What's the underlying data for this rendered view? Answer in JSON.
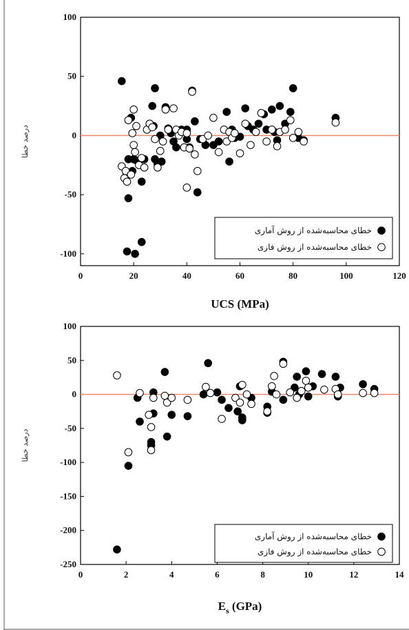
{
  "chart_data": [
    {
      "type": "scatter",
      "xlabel": "UCS (MPa)",
      "ylabel": "درصد خطا",
      "xlim": [
        0,
        120
      ],
      "ylim": [
        -110,
        100
      ],
      "xticks": [
        0,
        20,
        40,
        60,
        80,
        100,
        120
      ],
      "yticks": [
        100,
        50,
        0,
        -50,
        -100
      ],
      "reference_line": {
        "y": 0,
        "color": "#f08060"
      },
      "legend": {
        "position": "bottom-right"
      },
      "series": [
        {
          "name": "خطای محاسبه‌شده از روش آماری",
          "marker": "filled",
          "color": "#000000",
          "points": [
            [
              15.5,
              46
            ],
            [
              17,
              -35
            ],
            [
              17.5,
              -98
            ],
            [
              18,
              -53
            ],
            [
              18,
              -20
            ],
            [
              19,
              15
            ],
            [
              19.5,
              -30
            ],
            [
              20,
              -20
            ],
            [
              20.5,
              -100
            ],
            [
              21,
              -21
            ],
            [
              23,
              -90
            ],
            [
              23,
              -39
            ],
            [
              24,
              -20
            ],
            [
              26,
              10
            ],
            [
              27,
              25
            ],
            [
              27.5,
              8
            ],
            [
              28,
              40
            ],
            [
              28,
              -20
            ],
            [
              29,
              -24
            ],
            [
              30,
              0
            ],
            [
              30.5,
              -22
            ],
            [
              32,
              24
            ],
            [
              33,
              6
            ],
            [
              34,
              2
            ],
            [
              35,
              -5
            ],
            [
              36,
              -10
            ],
            [
              37,
              3
            ],
            [
              38,
              5
            ],
            [
              39,
              -10
            ],
            [
              40,
              5
            ],
            [
              40,
              -3
            ],
            [
              41,
              -10
            ],
            [
              42,
              38
            ],
            [
              43,
              12
            ],
            [
              44,
              -48
            ],
            [
              45,
              -3
            ],
            [
              47,
              -8
            ],
            [
              50,
              -8
            ],
            [
              52,
              -5
            ],
            [
              55,
              20
            ],
            [
              56,
              -22
            ],
            [
              57,
              5
            ],
            [
              58,
              -2
            ],
            [
              60,
              -1
            ],
            [
              62,
              23
            ],
            [
              63,
              8
            ],
            [
              65,
              5
            ],
            [
              67,
              10
            ],
            [
              69,
              18
            ],
            [
              70,
              5
            ],
            [
              72,
              22
            ],
            [
              73,
              3
            ],
            [
              74,
              -4
            ],
            [
              75,
              25
            ],
            [
              77,
              10
            ],
            [
              79,
              20
            ],
            [
              80,
              40
            ],
            [
              82,
              -2
            ],
            [
              84,
              -4
            ],
            [
              96,
              15
            ]
          ]
        },
        {
          "name": "خطای محاسبه‌شده از روش فازی",
          "marker": "open",
          "color": "#000000",
          "points": [
            [
              15.5,
              -26
            ],
            [
              16.5,
              -36
            ],
            [
              17,
              -30
            ],
            [
              17.5,
              -39
            ],
            [
              18,
              13
            ],
            [
              19,
              -33
            ],
            [
              19.5,
              2
            ],
            [
              20,
              -8
            ],
            [
              20,
              22
            ],
            [
              20.5,
              -14
            ],
            [
              21,
              8
            ],
            [
              22,
              -25
            ],
            [
              23,
              -19
            ],
            [
              24,
              -27
            ],
            [
              25,
              5
            ],
            [
              26,
              10
            ],
            [
              27,
              7
            ],
            [
              28,
              -3
            ],
            [
              29,
              -27
            ],
            [
              30,
              -13
            ],
            [
              31,
              -5
            ],
            [
              32,
              22
            ],
            [
              33,
              5
            ],
            [
              35,
              23
            ],
            [
              36,
              5
            ],
            [
              37,
              0
            ],
            [
              38,
              3
            ],
            [
              39,
              -10
            ],
            [
              40,
              -44
            ],
            [
              40,
              2
            ],
            [
              41,
              -11
            ],
            [
              42,
              37
            ],
            [
              43,
              -16
            ],
            [
              44,
              -30
            ],
            [
              46,
              -3
            ],
            [
              48,
              0
            ],
            [
              50,
              15
            ],
            [
              52,
              -14
            ],
            [
              54,
              5
            ],
            [
              55,
              -5
            ],
            [
              56,
              3
            ],
            [
              57,
              -2
            ],
            [
              58,
              2
            ],
            [
              60,
              -15
            ],
            [
              62,
              10
            ],
            [
              64,
              -8
            ],
            [
              66,
              3
            ],
            [
              68,
              19
            ],
            [
              70,
              -5
            ],
            [
              72,
              5
            ],
            [
              74,
              -9
            ],
            [
              75,
              3
            ],
            [
              77,
              5
            ],
            [
              79,
              13
            ],
            [
              80,
              -2
            ],
            [
              82,
              3
            ],
            [
              84,
              -5
            ],
            [
              96,
              11
            ]
          ]
        }
      ]
    },
    {
      "type": "scatter",
      "xlabel": "E",
      "xlabel_sub": "s",
      "xlabel_unit": " (GPa)",
      "ylabel": "درصد خطا",
      "xlim": [
        0,
        14
      ],
      "ylim": [
        -250,
        100
      ],
      "xticks": [
        0,
        2,
        4,
        6,
        8,
        10,
        12,
        14
      ],
      "yticks": [
        100,
        50,
        0,
        -50,
        -100,
        -150,
        -200,
        -250
      ],
      "reference_line": {
        "y": 0,
        "color": "#f08060"
      },
      "legend": {
        "position": "bottom-right"
      },
      "series": [
        {
          "name": "خطای محاسبه‌شده از روش آماری",
          "marker": "filled",
          "color": "#000000",
          "points": [
            [
              1.6,
              -228
            ],
            [
              2.1,
              -105
            ],
            [
              2.5,
              -5
            ],
            [
              2.6,
              -40
            ],
            [
              3.1,
              -75
            ],
            [
              3.1,
              -70
            ],
            [
              3.2,
              -28
            ],
            [
              3.2,
              3
            ],
            [
              3.7,
              33
            ],
            [
              3.8,
              -62
            ],
            [
              4.0,
              -30
            ],
            [
              4.7,
              -32
            ],
            [
              5.4,
              0
            ],
            [
              5.6,
              46
            ],
            [
              6.0,
              3
            ],
            [
              6.2,
              -8
            ],
            [
              6.5,
              -20
            ],
            [
              6.9,
              -25
            ],
            [
              7.0,
              12
            ],
            [
              7.1,
              -38
            ],
            [
              7.1,
              -34
            ],
            [
              7.5,
              -5
            ],
            [
              8.2,
              -27
            ],
            [
              8.2,
              -18
            ],
            [
              8.4,
              4
            ],
            [
              8.9,
              -8
            ],
            [
              8.9,
              48
            ],
            [
              9.4,
              10
            ],
            [
              9.5,
              26
            ],
            [
              9.6,
              0
            ],
            [
              9.9,
              34
            ],
            [
              10.0,
              -3
            ],
            [
              10.2,
              12
            ],
            [
              10.6,
              30
            ],
            [
              11.2,
              26
            ],
            [
              11.3,
              -3
            ],
            [
              11.4,
              10
            ],
            [
              12.4,
              15
            ],
            [
              12.9,
              8
            ]
          ]
        },
        {
          "name": "خطای محاسبه‌شده از روش فازی",
          "marker": "open",
          "color": "#000000",
          "points": [
            [
              1.6,
              28
            ],
            [
              2.1,
              -85
            ],
            [
              2.6,
              2
            ],
            [
              3.0,
              -30
            ],
            [
              3.1,
              -48
            ],
            [
              3.1,
              -82
            ],
            [
              3.2,
              -5
            ],
            [
              3.7,
              -2
            ],
            [
              3.8,
              -12
            ],
            [
              4.0,
              -5
            ],
            [
              4.7,
              -8
            ],
            [
              5.5,
              11
            ],
            [
              5.7,
              2
            ],
            [
              6.2,
              -36
            ],
            [
              6.8,
              -5
            ],
            [
              7.0,
              -12
            ],
            [
              7.1,
              14
            ],
            [
              7.3,
              0
            ],
            [
              7.5,
              -14
            ],
            [
              8.2,
              -25
            ],
            [
              8.4,
              12
            ],
            [
              8.5,
              27
            ],
            [
              8.6,
              0
            ],
            [
              8.9,
              45
            ],
            [
              9.2,
              3
            ],
            [
              9.5,
              -5
            ],
            [
              9.7,
              5
            ],
            [
              9.9,
              20
            ],
            [
              10.0,
              10
            ],
            [
              10.7,
              7
            ],
            [
              11.2,
              8
            ],
            [
              11.3,
              0
            ],
            [
              12.4,
              2
            ],
            [
              12.9,
              2
            ]
          ]
        }
      ]
    }
  ]
}
